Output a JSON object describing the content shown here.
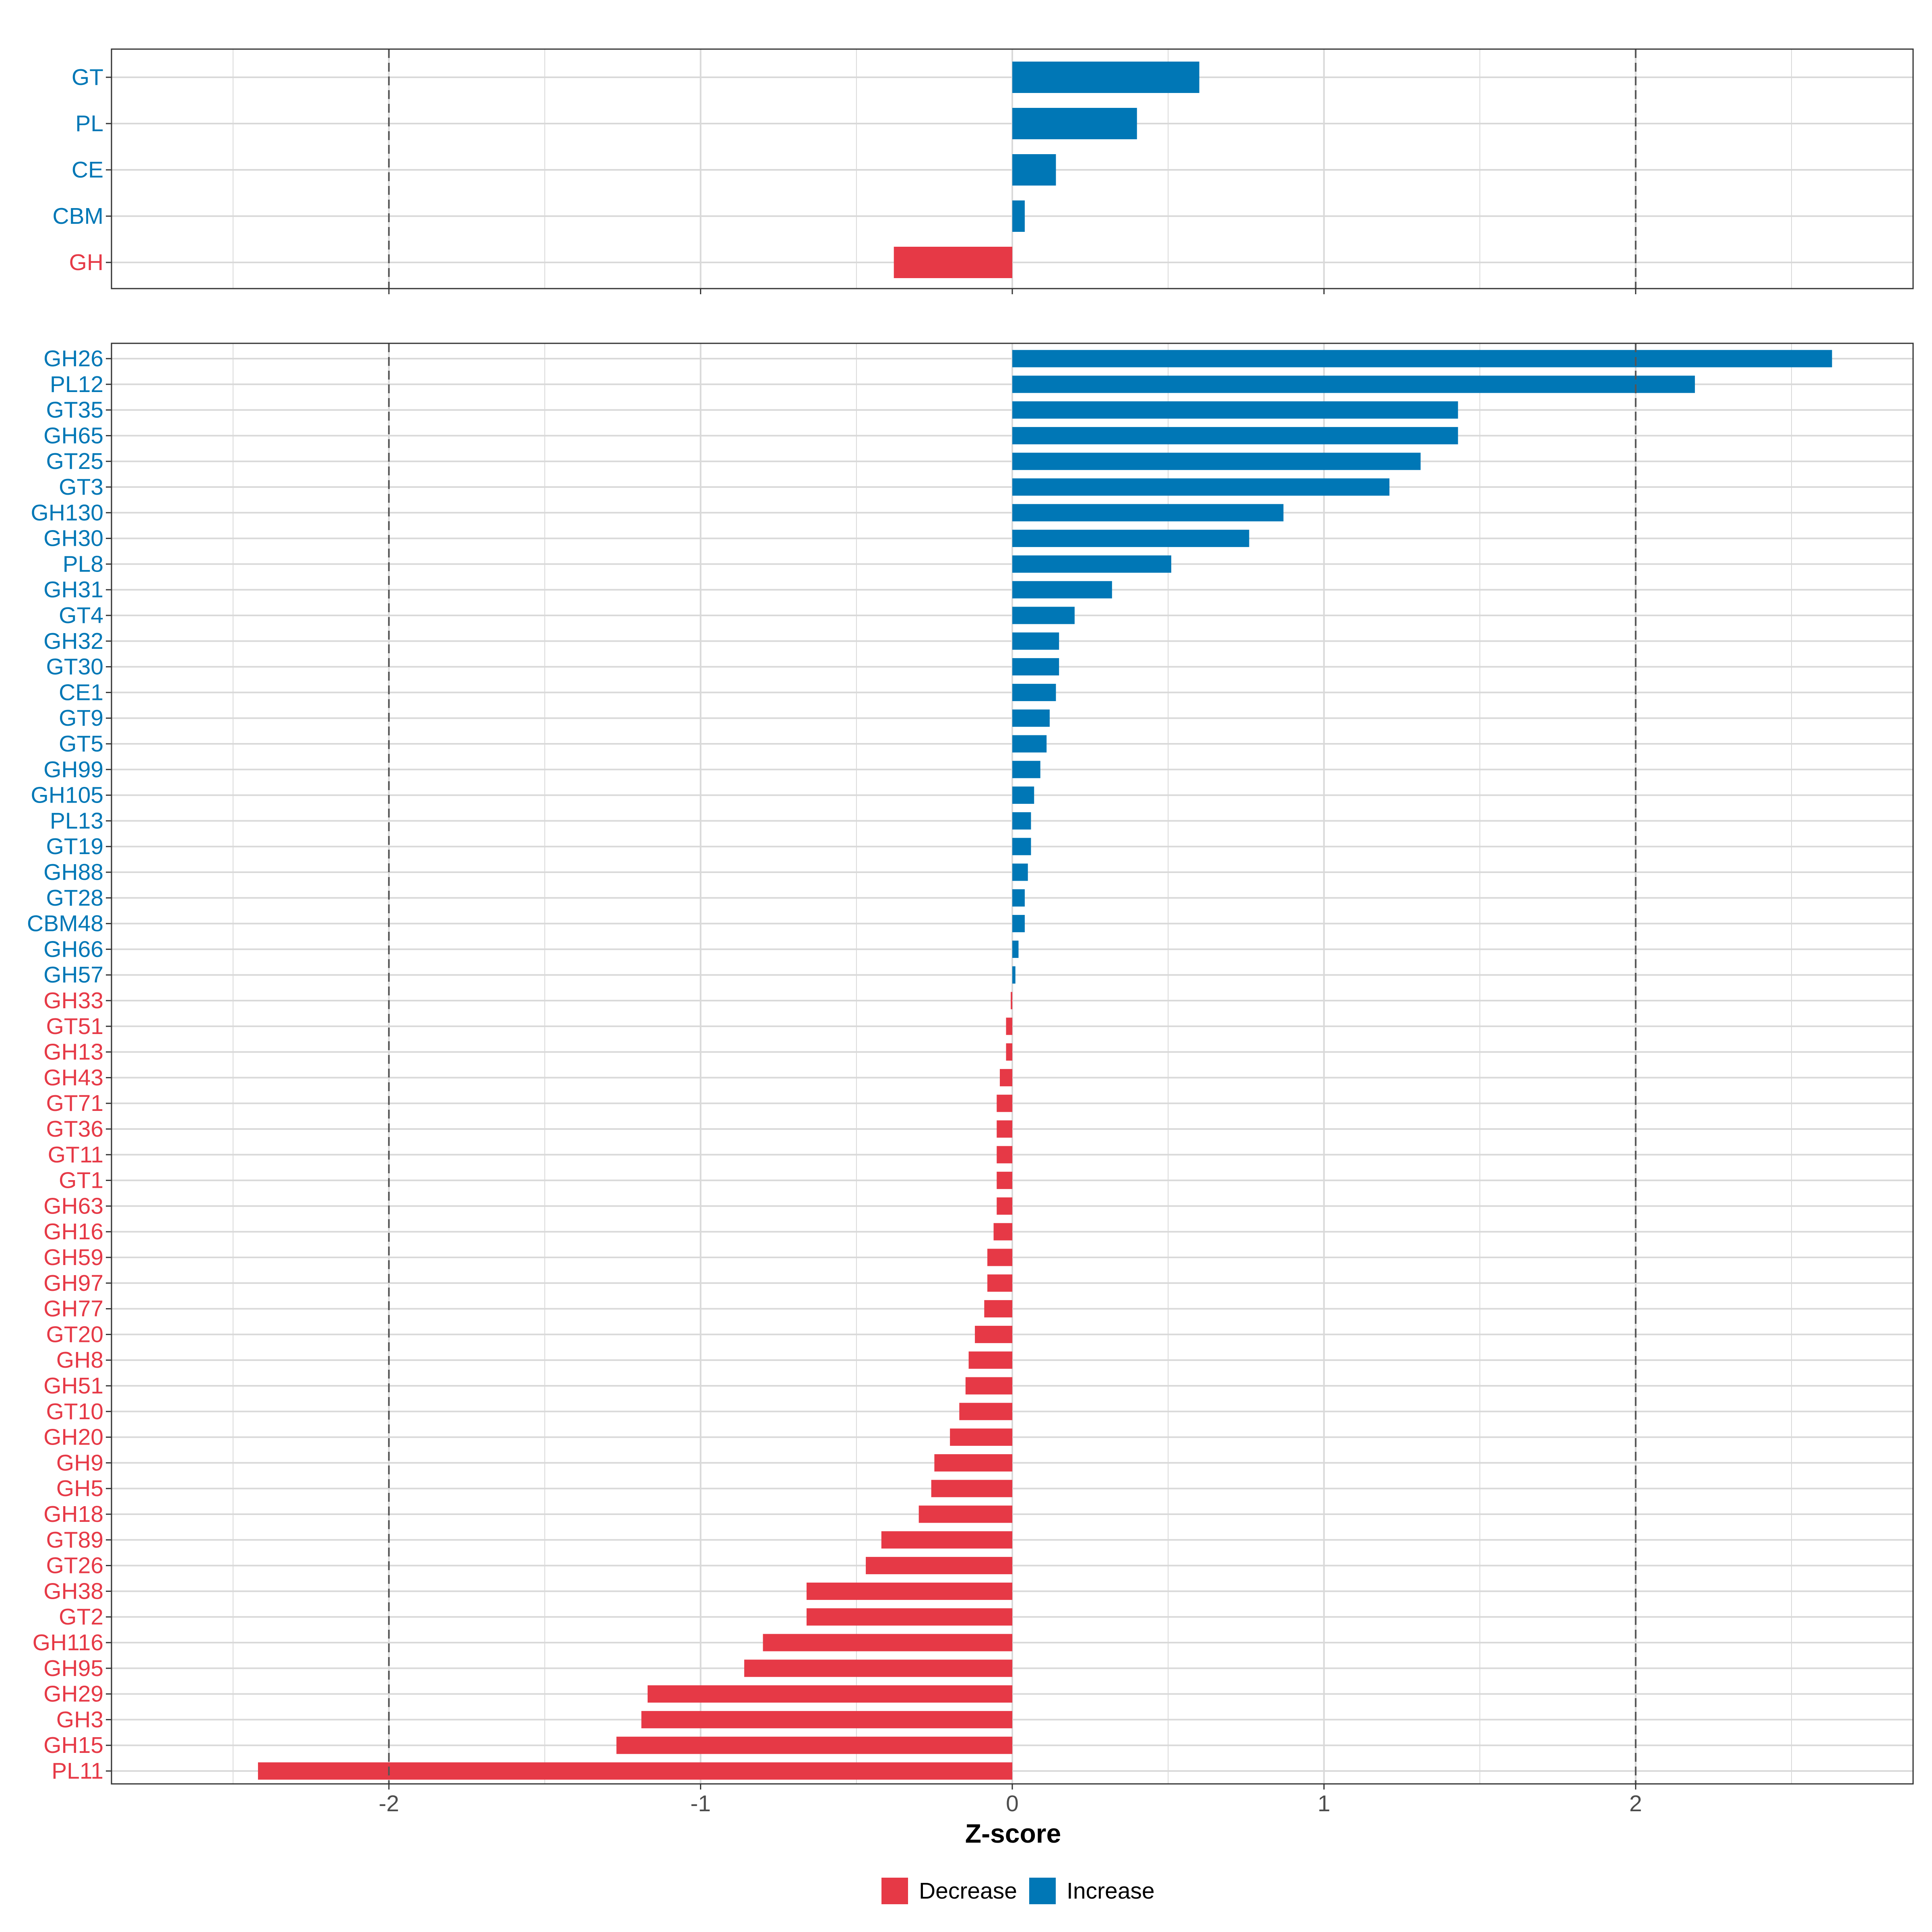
{
  "chart_data": [
    {
      "type": "bar",
      "orientation": "horizontal",
      "panel": "top",
      "categories": [
        "GT",
        "PL",
        "CE",
        "CBM",
        "GH"
      ],
      "values": [
        0.6,
        0.4,
        0.14,
        0.04,
        -0.38
      ],
      "xlim": [
        -2.89,
        2.89
      ],
      "reference_lines": [
        -2,
        2
      ],
      "grid": true
    },
    {
      "type": "bar",
      "orientation": "horizontal",
      "panel": "bottom",
      "categories": [
        "GH26",
        "PL12",
        "GT35",
        "GH65",
        "GT25",
        "GT3",
        "GH130",
        "GH30",
        "PL8",
        "GH31",
        "GT4",
        "GH32",
        "GT30",
        "CE1",
        "GT9",
        "GT5",
        "GH99",
        "GH105",
        "PL13",
        "GT19",
        "GH88",
        "GT28",
        "CBM48",
        "GH66",
        "GH57",
        "GH33",
        "GT51",
        "GH13",
        "GH43",
        "GT71",
        "GT36",
        "GT11",
        "GT1",
        "GH63",
        "GH16",
        "GH59",
        "GH97",
        "GH77",
        "GT20",
        "GH8",
        "GH51",
        "GT10",
        "GH20",
        "GH9",
        "GH5",
        "GH18",
        "GT89",
        "GT26",
        "GH38",
        "GT2",
        "GH116",
        "GH95",
        "GH29",
        "GH3",
        "GH15",
        "PL11"
      ],
      "values": [
        2.63,
        2.19,
        1.43,
        1.43,
        1.31,
        1.21,
        0.87,
        0.76,
        0.51,
        0.32,
        0.2,
        0.15,
        0.15,
        0.14,
        0.12,
        0.11,
        0.09,
        0.07,
        0.06,
        0.06,
        0.05,
        0.04,
        0.04,
        0.02,
        0.01,
        -0.005,
        -0.02,
        -0.02,
        -0.04,
        -0.05,
        -0.05,
        -0.05,
        -0.05,
        -0.05,
        -0.06,
        -0.08,
        -0.08,
        -0.09,
        -0.12,
        -0.14,
        -0.15,
        -0.17,
        -0.2,
        -0.25,
        -0.26,
        -0.3,
        -0.42,
        -0.47,
        -0.66,
        -0.66,
        -0.8,
        -0.86,
        -1.17,
        -1.19,
        -1.27,
        -2.42
      ],
      "xlim": [
        -2.89,
        2.89
      ],
      "xticks": [
        -2,
        -1,
        0,
        1,
        2
      ],
      "xtick_labels": [
        "-2",
        "-1",
        "0",
        "1",
        "2"
      ],
      "xlabel": "Z-score",
      "reference_lines": [
        -2,
        2
      ],
      "grid": true
    }
  ],
  "legend": {
    "position": "bottom-center",
    "items": [
      {
        "label": "Decrease",
        "color": "#E63946"
      },
      {
        "label": "Increase",
        "color": "#0077B6"
      }
    ]
  },
  "colors": {
    "increase": "#0077B6",
    "decrease": "#E63946",
    "grid": "#d9d9d9",
    "reference_line": "#555555",
    "panel_border": "#333333"
  }
}
